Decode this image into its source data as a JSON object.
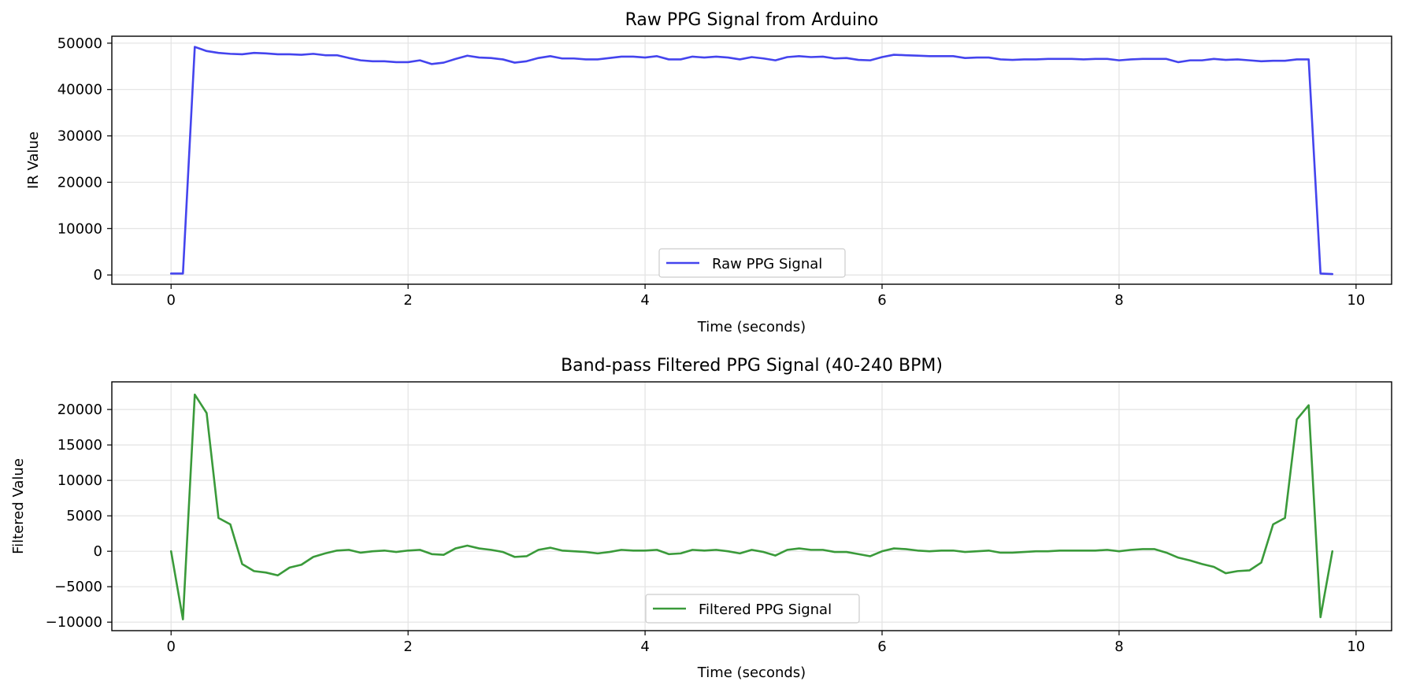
{
  "chart_data": [
    {
      "type": "line",
      "title": "Raw PPG Signal from Arduino",
      "xlabel": "Time (seconds)",
      "ylabel": "IR Value",
      "xlim": [
        -0.5,
        10.3
      ],
      "ylim": [
        -2000,
        51500
      ],
      "xticks": [
        0,
        2,
        4,
        6,
        8,
        10
      ],
      "yticks": [
        0,
        10000,
        20000,
        30000,
        40000,
        50000
      ],
      "grid": true,
      "legend_position": "lower center",
      "series": [
        {
          "name": "Raw PPG Signal",
          "color": "#4444ee",
          "x": [
            0,
            0.1,
            0.2,
            0.3,
            0.4,
            0.5,
            0.6,
            0.7,
            0.8,
            0.9,
            1.0,
            1.1,
            1.2,
            1.3,
            1.4,
            1.5,
            1.6,
            1.7,
            1.8,
            1.9,
            2.0,
            2.1,
            2.2,
            2.3,
            2.4,
            2.5,
            2.6,
            2.7,
            2.8,
            2.9,
            3.0,
            3.1,
            3.2,
            3.3,
            3.4,
            3.5,
            3.6,
            3.7,
            3.8,
            3.9,
            4.0,
            4.1,
            4.2,
            4.3,
            4.4,
            4.5,
            4.6,
            4.7,
            4.8,
            4.9,
            5.0,
            5.1,
            5.2,
            5.3,
            5.4,
            5.5,
            5.6,
            5.7,
            5.8,
            5.9,
            6.0,
            6.1,
            6.2,
            6.3,
            6.4,
            6.5,
            6.6,
            6.7,
            6.8,
            6.9,
            7.0,
            7.1,
            7.2,
            7.3,
            7.4,
            7.5,
            7.6,
            7.7,
            7.8,
            7.9,
            8.0,
            8.1,
            8.2,
            8.3,
            8.4,
            8.5,
            8.6,
            8.7,
            8.8,
            8.9,
            9.0,
            9.1,
            9.2,
            9.3,
            9.4,
            9.5,
            9.6,
            9.7,
            9.8
          ],
          "y": [
            300,
            300,
            49200,
            48300,
            47900,
            47700,
            47600,
            47900,
            47800,
            47600,
            47600,
            47500,
            47700,
            47400,
            47400,
            46800,
            46300,
            46100,
            46100,
            45900,
            45900,
            46300,
            45500,
            45800,
            46600,
            47300,
            46900,
            46800,
            46500,
            45800,
            46100,
            46800,
            47200,
            46700,
            46700,
            46500,
            46500,
            46800,
            47100,
            47100,
            46900,
            47200,
            46500,
            46500,
            47100,
            46900,
            47100,
            46900,
            46500,
            47000,
            46700,
            46300,
            47000,
            47200,
            47000,
            47100,
            46700,
            46800,
            46400,
            46300,
            47000,
            47500,
            47400,
            47300,
            47200,
            47200,
            47200,
            46800,
            46900,
            46900,
            46500,
            46400,
            46500,
            46500,
            46600,
            46600,
            46600,
            46500,
            46600,
            46600,
            46300,
            46500,
            46600,
            46600,
            46600,
            45900,
            46300,
            46300,
            46600,
            46400,
            46500,
            46300,
            46100,
            46200,
            46200,
            46500,
            46500,
            300,
            200
          ]
        }
      ]
    },
    {
      "type": "line",
      "title": "Band-pass Filtered PPG Signal (40-240 BPM)",
      "xlabel": "Time (seconds)",
      "ylabel": "Filtered Value",
      "xlim": [
        -0.5,
        10.3
      ],
      "ylim": [
        -11200,
        23900
      ],
      "xticks": [
        0,
        2,
        4,
        6,
        8,
        10
      ],
      "yticks": [
        -10000,
        -5000,
        0,
        5000,
        10000,
        15000,
        20000
      ],
      "grid": true,
      "legend_position": "lower center",
      "series": [
        {
          "name": "Filtered PPG Signal",
          "color": "#3a9a3a",
          "x": [
            0,
            0.1,
            0.2,
            0.3,
            0.4,
            0.5,
            0.6,
            0.7,
            0.8,
            0.9,
            1.0,
            1.1,
            1.2,
            1.3,
            1.4,
            1.5,
            1.6,
            1.7,
            1.8,
            1.9,
            2.0,
            2.1,
            2.2,
            2.3,
            2.4,
            2.5,
            2.6,
            2.7,
            2.8,
            2.9,
            3.0,
            3.1,
            3.2,
            3.3,
            3.4,
            3.5,
            3.6,
            3.7,
            3.8,
            3.9,
            4.0,
            4.1,
            4.2,
            4.3,
            4.4,
            4.5,
            4.6,
            4.7,
            4.8,
            4.9,
            5.0,
            5.1,
            5.2,
            5.3,
            5.4,
            5.5,
            5.6,
            5.7,
            5.8,
            5.9,
            6.0,
            6.1,
            6.2,
            6.3,
            6.4,
            6.5,
            6.6,
            6.7,
            6.8,
            6.9,
            7.0,
            7.1,
            7.2,
            7.3,
            7.4,
            7.5,
            7.6,
            7.7,
            7.8,
            7.9,
            8.0,
            8.1,
            8.2,
            8.3,
            8.4,
            8.5,
            8.6,
            8.7,
            8.8,
            8.9,
            9.0,
            9.1,
            9.2,
            9.3,
            9.4,
            9.5,
            9.6,
            9.7,
            9.8
          ],
          "y": [
            0,
            -9600,
            22100,
            19500,
            4700,
            3800,
            -1800,
            -2800,
            -3000,
            -3400,
            -2300,
            -1900,
            -800,
            -300,
            100,
            200,
            -200,
            0,
            100,
            -100,
            100,
            200,
            -400,
            -500,
            400,
            800,
            400,
            200,
            -100,
            -800,
            -700,
            200,
            500,
            100,
            0,
            -100,
            -300,
            -100,
            200,
            100,
            100,
            200,
            -400,
            -300,
            200,
            100,
            200,
            0,
            -300,
            200,
            -100,
            -600,
            200,
            400,
            200,
            200,
            -100,
            -100,
            -400,
            -700,
            0,
            400,
            300,
            100,
            0,
            100,
            100,
            -100,
            0,
            100,
            -200,
            -200,
            -100,
            0,
            0,
            100,
            100,
            100,
            100,
            200,
            0,
            200,
            300,
            300,
            -200,
            -900,
            -1300,
            -1800,
            -2200,
            -3100,
            -2800,
            -2700,
            -1600,
            3800,
            4700,
            18600,
            20600,
            -9300,
            0
          ]
        }
      ]
    }
  ]
}
